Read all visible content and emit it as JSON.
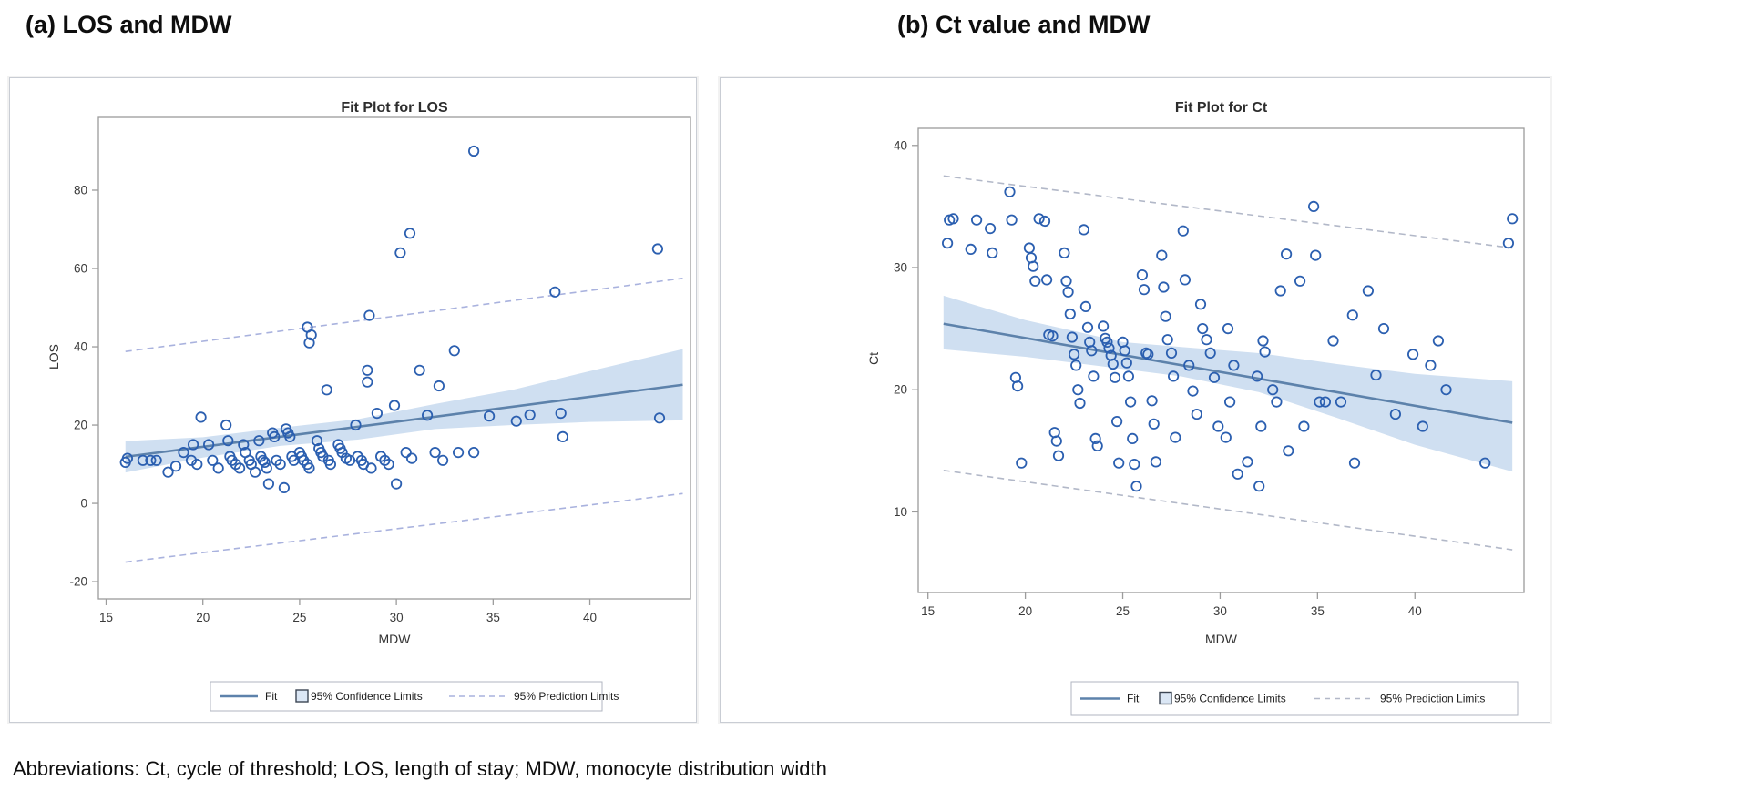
{
  "page": {
    "heading_a": "(a) LOS and MDW",
    "heading_b": "(b) Ct value and MDW",
    "abbreviations": "Abbreviations: Ct, cycle of threshold; LOS, length of stay; MDW, monocyte distribution width"
  },
  "colors": {
    "marker": "#2b5fb0",
    "fit": "#5d82ab",
    "band": "#cfdff1",
    "pl_a": "#a9b2de",
    "pl_b": "#b2b8c8",
    "frame": "#9c9c9c",
    "tick_text": "#3a3a3a",
    "legend_border": "#b0b6c0",
    "legend_square_fill": "#dbe7f5",
    "legend_square_border": "#3c4654"
  },
  "chart_data": [
    {
      "type": "scatter",
      "title": "Fit Plot for LOS",
      "xlabel": "MDW",
      "ylabel": "LOS",
      "xlim": [
        14.6,
        45.2
      ],
      "ylim": [
        -24.4,
        98.6
      ],
      "x_ticks": [
        15,
        20,
        25,
        30,
        35,
        40
      ],
      "y_ticks": [
        -20,
        0,
        20,
        40,
        60,
        80
      ],
      "legend": [
        "Fit",
        "95% Confidence Limits",
        "95% Prediction Limits"
      ],
      "points": [
        [
          16,
          10.5
        ],
        [
          16.1,
          11.5
        ],
        [
          16.9,
          11
        ],
        [
          17.3,
          11
        ],
        [
          17.6,
          11
        ],
        [
          18.2,
          8
        ],
        [
          18.6,
          9.5
        ],
        [
          19,
          13
        ],
        [
          19.4,
          11
        ],
        [
          19.5,
          15
        ],
        [
          19.7,
          10
        ],
        [
          19.9,
          22
        ],
        [
          20.3,
          15
        ],
        [
          20.5,
          11
        ],
        [
          20.8,
          9
        ],
        [
          21.2,
          20
        ],
        [
          21.3,
          16
        ],
        [
          21.4,
          12
        ],
        [
          21.5,
          11
        ],
        [
          21.7,
          10
        ],
        [
          21.9,
          9
        ],
        [
          22.1,
          15
        ],
        [
          22.2,
          13
        ],
        [
          22.4,
          11
        ],
        [
          22.5,
          10
        ],
        [
          22.7,
          8
        ],
        [
          22.9,
          16
        ],
        [
          23,
          12
        ],
        [
          23.1,
          11
        ],
        [
          23.2,
          10.5
        ],
        [
          23.3,
          9
        ],
        [
          23.4,
          5
        ],
        [
          23.6,
          18
        ],
        [
          23.7,
          17
        ],
        [
          23.8,
          11
        ],
        [
          24,
          10
        ],
        [
          24.2,
          4
        ],
        [
          24.3,
          19
        ],
        [
          24.4,
          18
        ],
        [
          24.5,
          17
        ],
        [
          24.6,
          12
        ],
        [
          24.7,
          11
        ],
        [
          25,
          13
        ],
        [
          25.1,
          12
        ],
        [
          25.2,
          11
        ],
        [
          25.4,
          10
        ],
        [
          25.5,
          9
        ],
        [
          25.4,
          45
        ],
        [
          25.6,
          43
        ],
        [
          25.5,
          41
        ],
        [
          25.9,
          16
        ],
        [
          26,
          14
        ],
        [
          26.1,
          13
        ],
        [
          26.2,
          12
        ],
        [
          26.4,
          29
        ],
        [
          26.5,
          11
        ],
        [
          26.6,
          10
        ],
        [
          27,
          15
        ],
        [
          27.1,
          14
        ],
        [
          27.2,
          13
        ],
        [
          27.4,
          11.5
        ],
        [
          27.6,
          11
        ],
        [
          27.9,
          20
        ],
        [
          28,
          12
        ],
        [
          28.2,
          11
        ],
        [
          28.3,
          10
        ],
        [
          28.6,
          48
        ],
        [
          28.5,
          34
        ],
        [
          28.5,
          31
        ],
        [
          28.7,
          9
        ],
        [
          29,
          23
        ],
        [
          29.2,
          12
        ],
        [
          29.4,
          11
        ],
        [
          29.6,
          10
        ],
        [
          29.9,
          25
        ],
        [
          30,
          5
        ],
        [
          30.2,
          64
        ],
        [
          30.7,
          69
        ],
        [
          30.5,
          13
        ],
        [
          30.8,
          11.5
        ],
        [
          31.2,
          34
        ],
        [
          31.6,
          22.5
        ],
        [
          32,
          13
        ],
        [
          32.2,
          30
        ],
        [
          32.4,
          11
        ],
        [
          33,
          39
        ],
        [
          33.2,
          13
        ],
        [
          34,
          90
        ],
        [
          34,
          13
        ],
        [
          34.8,
          22.3
        ],
        [
          36.9,
          22.6
        ],
        [
          38.2,
          54
        ],
        [
          38.5,
          23
        ],
        [
          36.2,
          21
        ],
        [
          38.6,
          17
        ],
        [
          43.5,
          65
        ],
        [
          43.6,
          21.8
        ]
      ],
      "fit": [
        [
          16,
          11.9
        ],
        [
          44.8,
          30.3
        ]
      ],
      "ci_upper": [
        [
          16,
          15.9
        ],
        [
          20,
          16.9
        ],
        [
          24,
          19.3
        ],
        [
          28,
          21.5
        ],
        [
          32,
          25.4
        ],
        [
          36,
          29
        ],
        [
          40,
          33.8
        ],
        [
          44.8,
          39.4
        ]
      ],
      "ci_lower": [
        [
          16,
          7.9
        ],
        [
          20,
          11.7
        ],
        [
          24,
          14.7
        ],
        [
          28,
          16.3
        ],
        [
          32,
          19
        ],
        [
          36,
          20
        ],
        [
          40,
          20.8
        ],
        [
          44.8,
          21.2
        ]
      ],
      "pl_upper": [
        [
          16,
          38.8
        ],
        [
          44.8,
          57.5
        ]
      ],
      "pl_lower": [
        [
          16,
          -15
        ],
        [
          44.8,
          2.5
        ]
      ]
    },
    {
      "type": "scatter",
      "title": "Fit Plot for Ct",
      "xlabel": "MDW",
      "ylabel": "Ct",
      "xlim": [
        14.5,
        45.6
      ],
      "ylim": [
        3.4,
        41.4
      ],
      "x_ticks": [
        15,
        20,
        25,
        30,
        35,
        40
      ],
      "y_ticks": [
        10,
        20,
        30,
        40
      ],
      "legend": [
        "Fit",
        "95% Confidence Limits",
        "95% Prediction Limits"
      ],
      "points": [
        [
          16,
          32
        ],
        [
          16.1,
          33.9
        ],
        [
          16.3,
          34
        ],
        [
          17.2,
          31.5
        ],
        [
          17.5,
          33.9
        ],
        [
          18.2,
          33.2
        ],
        [
          18.3,
          31.2
        ],
        [
          19.2,
          36.2
        ],
        [
          19.3,
          33.9
        ],
        [
          19.5,
          21
        ],
        [
          19.6,
          20.3
        ],
        [
          19.8,
          14
        ],
        [
          20.2,
          31.6
        ],
        [
          20.3,
          30.8
        ],
        [
          20.4,
          30.1
        ],
        [
          20.5,
          28.9
        ],
        [
          20.7,
          34
        ],
        [
          21,
          33.8
        ],
        [
          21.1,
          29
        ],
        [
          21.2,
          24.5
        ],
        [
          21.4,
          24.4
        ],
        [
          21.5,
          16.5
        ],
        [
          21.6,
          15.8
        ],
        [
          21.7,
          14.6
        ],
        [
          22,
          31.2
        ],
        [
          22.1,
          28.9
        ],
        [
          22.2,
          28
        ],
        [
          22.3,
          26.2
        ],
        [
          22.4,
          24.3
        ],
        [
          22.5,
          22.9
        ],
        [
          22.6,
          22
        ],
        [
          22.7,
          20
        ],
        [
          22.8,
          18.9
        ],
        [
          23,
          33.1
        ],
        [
          23.1,
          26.8
        ],
        [
          23.2,
          25.1
        ],
        [
          23.3,
          23.9
        ],
        [
          23.4,
          23.2
        ],
        [
          23.5,
          21.1
        ],
        [
          23.6,
          16
        ],
        [
          23.7,
          15.4
        ],
        [
          24,
          25.2
        ],
        [
          24.1,
          24.2
        ],
        [
          24.2,
          23.9
        ],
        [
          24.3,
          23.4
        ],
        [
          24.4,
          22.8
        ],
        [
          24.5,
          22.1
        ],
        [
          24.6,
          21
        ],
        [
          24.7,
          17.4
        ],
        [
          24.8,
          14
        ],
        [
          25,
          23.9
        ],
        [
          25.1,
          23.2
        ],
        [
          25.2,
          22.2
        ],
        [
          25.3,
          21.1
        ],
        [
          25.4,
          19
        ],
        [
          25.5,
          16
        ],
        [
          25.6,
          13.9
        ],
        [
          25.7,
          12.1
        ],
        [
          26,
          29.4
        ],
        [
          26.1,
          28.2
        ],
        [
          26.2,
          23
        ],
        [
          26.3,
          22.9
        ],
        [
          26.5,
          19.1
        ],
        [
          26.6,
          17.2
        ],
        [
          26.7,
          14.1
        ],
        [
          27,
          31
        ],
        [
          27.1,
          28.4
        ],
        [
          27.2,
          26
        ],
        [
          27.3,
          24.1
        ],
        [
          27.5,
          23
        ],
        [
          27.6,
          21.1
        ],
        [
          27.7,
          16.1
        ],
        [
          28.1,
          33
        ],
        [
          28.2,
          29
        ],
        [
          28.4,
          22
        ],
        [
          28.6,
          19.9
        ],
        [
          28.8,
          18
        ],
        [
          29,
          27
        ],
        [
          29.1,
          25
        ],
        [
          29.3,
          24.1
        ],
        [
          29.5,
          23
        ],
        [
          29.7,
          21
        ],
        [
          29.9,
          17
        ],
        [
          30.3,
          16.1
        ],
        [
          30.4,
          25
        ],
        [
          30.5,
          19
        ],
        [
          30.7,
          22
        ],
        [
          30.9,
          13.1
        ],
        [
          31.4,
          14.1
        ],
        [
          31.9,
          21.1
        ],
        [
          32,
          12.1
        ],
        [
          32.1,
          17
        ],
        [
          32.2,
          24
        ],
        [
          32.3,
          23.1
        ],
        [
          32.7,
          20
        ],
        [
          32.9,
          19
        ],
        [
          33.1,
          28.1
        ],
        [
          33.4,
          31.1
        ],
        [
          33.5,
          15
        ],
        [
          34.1,
          28.9
        ],
        [
          34.3,
          17
        ],
        [
          34.8,
          35
        ],
        [
          34.9,
          31
        ],
        [
          35.1,
          19
        ],
        [
          35.4,
          19
        ],
        [
          35.8,
          24
        ],
        [
          36.2,
          19
        ],
        [
          36.8,
          26.1
        ],
        [
          36.9,
          14
        ],
        [
          37.6,
          28.1
        ],
        [
          38,
          21.2
        ],
        [
          38.4,
          25
        ],
        [
          39,
          18
        ],
        [
          39.9,
          22.9
        ],
        [
          40.4,
          17
        ],
        [
          40.8,
          22
        ],
        [
          41.2,
          24
        ],
        [
          41.6,
          20
        ],
        [
          43.6,
          14
        ],
        [
          44.8,
          32
        ],
        [
          45,
          34
        ]
      ],
      "fit": [
        [
          15.8,
          25.4
        ],
        [
          45,
          17.3
        ]
      ],
      "ci_upper": [
        [
          15.8,
          27.7
        ],
        [
          20,
          25.7
        ],
        [
          25,
          23.9
        ],
        [
          28,
          23.5
        ],
        [
          32,
          23.0
        ],
        [
          36,
          22.1
        ],
        [
          40,
          21.3
        ],
        [
          45,
          20.7
        ]
      ],
      "ci_lower": [
        [
          15.8,
          23.3
        ],
        [
          20,
          22.7
        ],
        [
          25,
          21.7
        ],
        [
          28,
          21.1
        ],
        [
          32,
          19.8
        ],
        [
          36,
          17.7
        ],
        [
          40,
          15.5
        ],
        [
          45,
          13.3
        ]
      ],
      "pl_upper": [
        [
          15.8,
          37.5
        ],
        [
          45,
          31.6
        ]
      ],
      "pl_lower": [
        [
          15.8,
          13.4
        ],
        [
          45,
          6.9
        ]
      ]
    }
  ]
}
